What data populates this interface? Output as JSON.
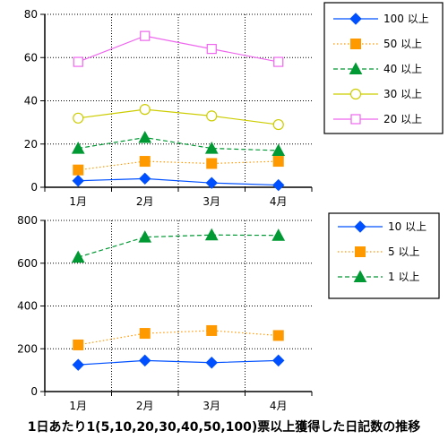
{
  "chart_data": [
    {
      "type": "line",
      "categories": [
        "1月",
        "2月",
        "3月",
        "4月"
      ],
      "ylim": [
        0,
        80
      ],
      "yticks": [
        0,
        20,
        40,
        60,
        80
      ],
      "grid": true,
      "legend_position": "right",
      "series": [
        {
          "name": "100 以上",
          "values": [
            3,
            4,
            2,
            1
          ],
          "color": "#0050ff",
          "marker": "diamond",
          "dash": "solid"
        },
        {
          "name": "50 以上",
          "values": [
            8,
            12,
            11,
            12
          ],
          "color": "#ff9900",
          "marker": "square",
          "dash": "dotted"
        },
        {
          "name": "40 以上",
          "values": [
            18,
            23,
            18,
            17
          ],
          "color": "#009933",
          "marker": "triangle",
          "dash": "dashed"
        },
        {
          "name": "30 以上",
          "values": [
            32,
            36,
            33,
            29
          ],
          "color": "#cccc00",
          "marker": "circle-open",
          "dash": "solid"
        },
        {
          "name": "20 以上",
          "values": [
            58,
            70,
            64,
            58
          ],
          "color": "#ee66ee",
          "marker": "square-open",
          "dash": "solid"
        }
      ]
    },
    {
      "type": "line",
      "categories": [
        "1月",
        "2月",
        "3月",
        "4月"
      ],
      "ylim": [
        0,
        800
      ],
      "yticks": [
        0,
        200,
        400,
        600,
        800
      ],
      "grid": true,
      "legend_position": "right",
      "series": [
        {
          "name": "10 以上",
          "values": [
            125,
            145,
            135,
            145
          ],
          "color": "#0050ff",
          "marker": "diamond",
          "dash": "solid"
        },
        {
          "name": "5 以上",
          "values": [
            218,
            272,
            285,
            262
          ],
          "color": "#ff9900",
          "marker": "square",
          "dash": "dotted"
        },
        {
          "name": "1 以上",
          "values": [
            628,
            722,
            732,
            730
          ],
          "color": "#009933",
          "marker": "triangle",
          "dash": "dashed"
        }
      ]
    }
  ],
  "caption": "1日あたり1(5,10,20,30,40,50,100)票以上獲得した日記数の推移"
}
